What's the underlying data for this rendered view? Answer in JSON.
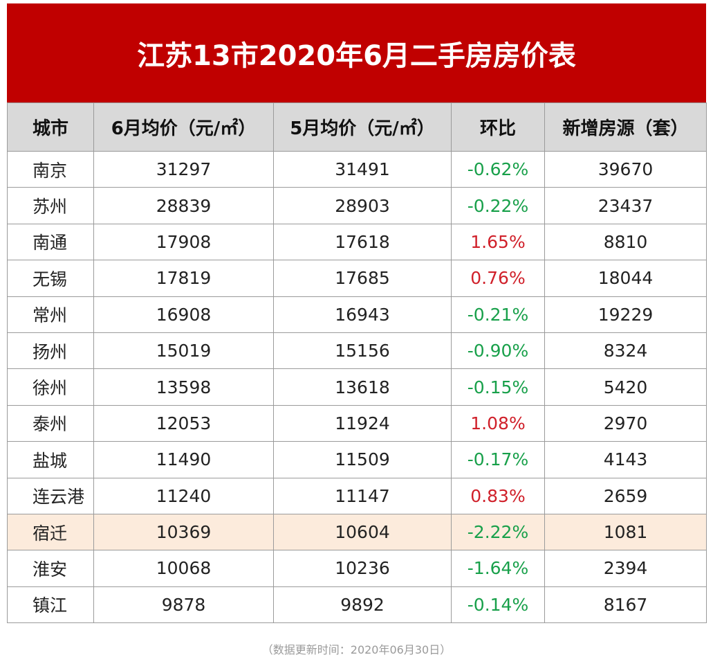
{
  "title": "江苏13市2020年6月二手房房价表",
  "table": {
    "header": [
      "城市",
      "6月均价（元/㎡）",
      "5月均价（元/㎡）",
      "环比",
      "新增房源（套）"
    ],
    "rows": [
      [
        "南京",
        31297,
        31491,
        "-0.62%",
        39670
      ],
      [
        "苏州",
        28839,
        28903,
        "-0.22%",
        23437
      ],
      [
        "南通",
        17908,
        17618,
        "1.65%",
        8810
      ],
      [
        "无锡",
        17819,
        17685,
        "0.76%",
        18044
      ],
      [
        "常州",
        16908,
        16943,
        "-0.21%",
        19229
      ],
      [
        "扬州",
        15019,
        15156,
        "-0.90%",
        8324
      ],
      [
        "徐州",
        13598,
        13618,
        "-0.15%",
        5420
      ],
      [
        "泰州",
        12053,
        11924,
        "1.08%",
        2970
      ],
      [
        "盐城",
        11490,
        11509,
        "-0.17%",
        4143
      ],
      [
        "连云港",
        11240,
        11147,
        "0.83%",
        2659
      ],
      [
        "宿迁",
        10369,
        10604,
        "-2.22%",
        1081
      ],
      [
        "淮安",
        10068,
        10236,
        "-1.64%",
        2394
      ],
      [
        "镇江",
        9878,
        9892,
        "-0.14%",
        8167
      ]
    ]
  },
  "footnote": "（数据更新时间：2020年06月30日）"
}
